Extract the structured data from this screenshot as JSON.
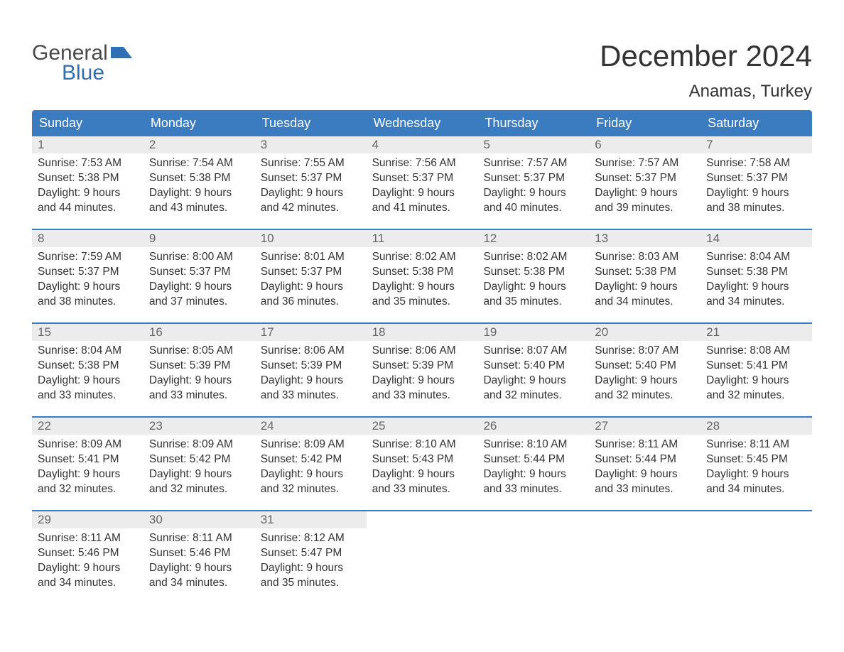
{
  "logo": {
    "textTop": "General",
    "textBottom": "Blue"
  },
  "title": "December 2024",
  "location": "Anamas, Turkey",
  "colors": {
    "headerBg": "#3b7bbf",
    "headerText": "#ffffff",
    "dayNumBg": "#ececec",
    "dayNumText": "#666666",
    "bodyText": "#333333",
    "weekBorder": "#3b7bbf",
    "background": "#ffffff",
    "logoGray": "#4a4a4a",
    "logoBlue": "#2f6fb3"
  },
  "dayNames": [
    "Sunday",
    "Monday",
    "Tuesday",
    "Wednesday",
    "Thursday",
    "Friday",
    "Saturday"
  ],
  "days": [
    {
      "n": "1",
      "sr": "7:53 AM",
      "ss": "5:38 PM",
      "dl": "9 hours and 44 minutes."
    },
    {
      "n": "2",
      "sr": "7:54 AM",
      "ss": "5:38 PM",
      "dl": "9 hours and 43 minutes."
    },
    {
      "n": "3",
      "sr": "7:55 AM",
      "ss": "5:37 PM",
      "dl": "9 hours and 42 minutes."
    },
    {
      "n": "4",
      "sr": "7:56 AM",
      "ss": "5:37 PM",
      "dl": "9 hours and 41 minutes."
    },
    {
      "n": "5",
      "sr": "7:57 AM",
      "ss": "5:37 PM",
      "dl": "9 hours and 40 minutes."
    },
    {
      "n": "6",
      "sr": "7:57 AM",
      "ss": "5:37 PM",
      "dl": "9 hours and 39 minutes."
    },
    {
      "n": "7",
      "sr": "7:58 AM",
      "ss": "5:37 PM",
      "dl": "9 hours and 38 minutes."
    },
    {
      "n": "8",
      "sr": "7:59 AM",
      "ss": "5:37 PM",
      "dl": "9 hours and 38 minutes."
    },
    {
      "n": "9",
      "sr": "8:00 AM",
      "ss": "5:37 PM",
      "dl": "9 hours and 37 minutes."
    },
    {
      "n": "10",
      "sr": "8:01 AM",
      "ss": "5:37 PM",
      "dl": "9 hours and 36 minutes."
    },
    {
      "n": "11",
      "sr": "8:02 AM",
      "ss": "5:38 PM",
      "dl": "9 hours and 35 minutes."
    },
    {
      "n": "12",
      "sr": "8:02 AM",
      "ss": "5:38 PM",
      "dl": "9 hours and 35 minutes."
    },
    {
      "n": "13",
      "sr": "8:03 AM",
      "ss": "5:38 PM",
      "dl": "9 hours and 34 minutes."
    },
    {
      "n": "14",
      "sr": "8:04 AM",
      "ss": "5:38 PM",
      "dl": "9 hours and 34 minutes."
    },
    {
      "n": "15",
      "sr": "8:04 AM",
      "ss": "5:38 PM",
      "dl": "9 hours and 33 minutes."
    },
    {
      "n": "16",
      "sr": "8:05 AM",
      "ss": "5:39 PM",
      "dl": "9 hours and 33 minutes."
    },
    {
      "n": "17",
      "sr": "8:06 AM",
      "ss": "5:39 PM",
      "dl": "9 hours and 33 minutes."
    },
    {
      "n": "18",
      "sr": "8:06 AM",
      "ss": "5:39 PM",
      "dl": "9 hours and 33 minutes."
    },
    {
      "n": "19",
      "sr": "8:07 AM",
      "ss": "5:40 PM",
      "dl": "9 hours and 32 minutes."
    },
    {
      "n": "20",
      "sr": "8:07 AM",
      "ss": "5:40 PM",
      "dl": "9 hours and 32 minutes."
    },
    {
      "n": "21",
      "sr": "8:08 AM",
      "ss": "5:41 PM",
      "dl": "9 hours and 32 minutes."
    },
    {
      "n": "22",
      "sr": "8:09 AM",
      "ss": "5:41 PM",
      "dl": "9 hours and 32 minutes."
    },
    {
      "n": "23",
      "sr": "8:09 AM",
      "ss": "5:42 PM",
      "dl": "9 hours and 32 minutes."
    },
    {
      "n": "24",
      "sr": "8:09 AM",
      "ss": "5:42 PM",
      "dl": "9 hours and 32 minutes."
    },
    {
      "n": "25",
      "sr": "8:10 AM",
      "ss": "5:43 PM",
      "dl": "9 hours and 33 minutes."
    },
    {
      "n": "26",
      "sr": "8:10 AM",
      "ss": "5:44 PM",
      "dl": "9 hours and 33 minutes."
    },
    {
      "n": "27",
      "sr": "8:11 AM",
      "ss": "5:44 PM",
      "dl": "9 hours and 33 minutes."
    },
    {
      "n": "28",
      "sr": "8:11 AM",
      "ss": "5:45 PM",
      "dl": "9 hours and 34 minutes."
    },
    {
      "n": "29",
      "sr": "8:11 AM",
      "ss": "5:46 PM",
      "dl": "9 hours and 34 minutes."
    },
    {
      "n": "30",
      "sr": "8:11 AM",
      "ss": "5:46 PM",
      "dl": "9 hours and 34 minutes."
    },
    {
      "n": "31",
      "sr": "8:12 AM",
      "ss": "5:47 PM",
      "dl": "9 hours and 35 minutes."
    }
  ],
  "labels": {
    "sunrise": "Sunrise:",
    "sunset": "Sunset:",
    "daylight": "Daylight:"
  },
  "layout": {
    "startOffset": 0,
    "totalCells": 35
  }
}
